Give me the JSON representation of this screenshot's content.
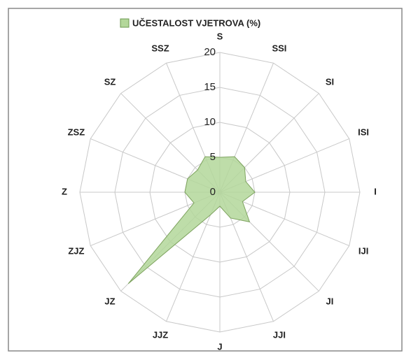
{
  "chart_data": {
    "type": "radar",
    "title": "UČESTALOST VJETROVA (%)",
    "categories": [
      "S",
      "SSI",
      "SI",
      "ISI",
      "I",
      "IJI",
      "JI",
      "JJI",
      "J",
      "JJZ",
      "JZ",
      "ZJZ",
      "Z",
      "ZSZ",
      "SZ",
      "SSZ"
    ],
    "series": [
      {
        "name": "UČESTALOST VJETROVA (%)",
        "color": "#b3d79a",
        "values": [
          5,
          5.5,
          5,
          4,
          5,
          3.5,
          6,
          4,
          2,
          3.5,
          18.5,
          4,
          5,
          5,
          4.5,
          5.5
        ]
      }
    ],
    "ylim": [
      0,
      20
    ],
    "yticks": [
      0,
      5,
      10,
      15,
      20
    ],
    "grid": true,
    "legend": "top"
  }
}
